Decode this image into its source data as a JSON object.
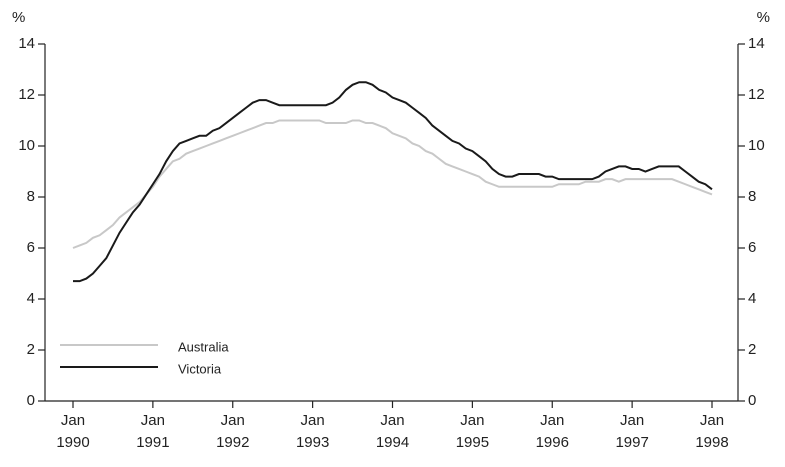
{
  "chart_data": {
    "type": "line",
    "y_label": "%",
    "y2_label": "%",
    "categories": [
      "Jan 1990",
      null,
      null,
      null,
      null,
      null,
      null,
      null,
      null,
      null,
      null,
      null,
      "Jan 1991",
      null,
      null,
      null,
      null,
      null,
      null,
      null,
      null,
      null,
      null,
      null,
      "Jan 1992",
      null,
      null,
      null,
      null,
      null,
      null,
      null,
      null,
      null,
      null,
      null,
      "Jan 1993",
      null,
      null,
      null,
      null,
      null,
      null,
      null,
      null,
      null,
      null,
      null,
      "Jan 1994",
      null,
      null,
      null,
      null,
      null,
      null,
      null,
      null,
      null,
      null,
      null,
      "Jan 1995",
      null,
      null,
      null,
      null,
      null,
      null,
      null,
      null,
      null,
      null,
      null,
      "Jan 1996",
      null,
      null,
      null,
      null,
      null,
      null,
      null,
      null,
      null,
      null,
      null,
      "Jan 1997",
      null,
      null,
      null,
      null,
      null,
      null,
      null,
      null,
      null,
      null,
      null,
      "Jan 1998"
    ],
    "series": [
      {
        "name": "Australia",
        "color": "#c8c8c8",
        "values": [
          6.0,
          6.1,
          6.2,
          6.4,
          6.5,
          6.7,
          6.9,
          7.2,
          7.4,
          7.6,
          7.8,
          8.1,
          8.4,
          8.8,
          9.1,
          9.4,
          9.5,
          9.7,
          9.8,
          9.9,
          10.0,
          10.1,
          10.2,
          10.3,
          10.4,
          10.5,
          10.6,
          10.7,
          10.8,
          10.9,
          10.9,
          11.0,
          11.0,
          11.0,
          11.0,
          11.0,
          11.0,
          11.0,
          10.9,
          10.9,
          10.9,
          10.9,
          11.0,
          11.0,
          10.9,
          10.9,
          10.8,
          10.7,
          10.5,
          10.4,
          10.3,
          10.1,
          10.0,
          9.8,
          9.7,
          9.5,
          9.3,
          9.2,
          9.1,
          9.0,
          8.9,
          8.8,
          8.6,
          8.5,
          8.4,
          8.4,
          8.4,
          8.4,
          8.4,
          8.4,
          8.4,
          8.4,
          8.4,
          8.5,
          8.5,
          8.5,
          8.5,
          8.6,
          8.6,
          8.6,
          8.7,
          8.7,
          8.6,
          8.7,
          8.7,
          8.7,
          8.7,
          8.7,
          8.7,
          8.7,
          8.7,
          8.6,
          8.5,
          8.4,
          8.3,
          8.2,
          8.1
        ]
      },
      {
        "name": "Victoria",
        "color": "#1a1a1a",
        "values": [
          4.7,
          4.7,
          4.8,
          5.0,
          5.3,
          5.6,
          6.1,
          6.6,
          7.0,
          7.4,
          7.7,
          8.1,
          8.5,
          8.9,
          9.4,
          9.8,
          10.1,
          10.2,
          10.3,
          10.4,
          10.4,
          10.6,
          10.7,
          10.9,
          11.1,
          11.3,
          11.5,
          11.7,
          11.8,
          11.8,
          11.7,
          11.6,
          11.6,
          11.6,
          11.6,
          11.6,
          11.6,
          11.6,
          11.6,
          11.7,
          11.9,
          12.2,
          12.4,
          12.5,
          12.5,
          12.4,
          12.2,
          12.1,
          11.9,
          11.8,
          11.7,
          11.5,
          11.3,
          11.1,
          10.8,
          10.6,
          10.4,
          10.2,
          10.1,
          9.9,
          9.8,
          9.6,
          9.4,
          9.1,
          8.9,
          8.8,
          8.8,
          8.9,
          8.9,
          8.9,
          8.9,
          8.8,
          8.8,
          8.7,
          8.7,
          8.7,
          8.7,
          8.7,
          8.7,
          8.8,
          9.0,
          9.1,
          9.2,
          9.2,
          9.1,
          9.1,
          9.0,
          9.1,
          9.2,
          9.2,
          9.2,
          9.2,
          9.0,
          8.8,
          8.6,
          8.5,
          8.3
        ]
      }
    ],
    "ylim": [
      0,
      14
    ],
    "yticks": [
      0,
      2,
      4,
      6,
      8,
      10,
      12,
      14
    ],
    "y2lim": [
      0,
      14
    ],
    "y2ticks": [
      0,
      2,
      4,
      6,
      8,
      10,
      12,
      14
    ],
    "grid": false,
    "legend": "lower left"
  }
}
